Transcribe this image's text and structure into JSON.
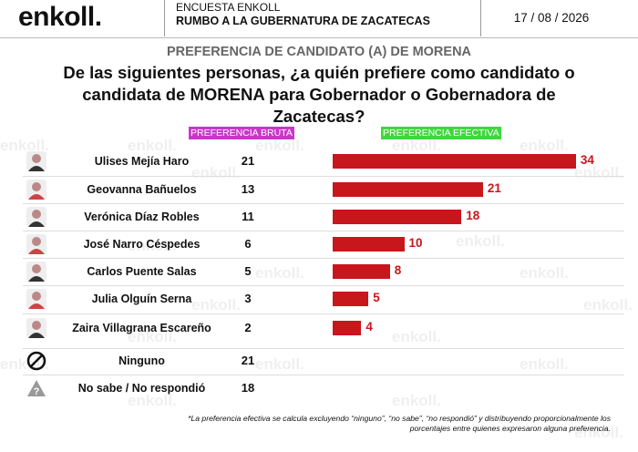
{
  "header": {
    "logo": "enkoll.",
    "survey": "ENCUESTA ENKOLL",
    "subtitle": "RUMBO A LA GUBERNATURA DE ZACATECAS",
    "date": "17 / 08 / 2026"
  },
  "chart_data": {
    "type": "bar",
    "section_title": "PREFERENCIA DE CANDIDATO (A) DE MORENA",
    "title": "De las siguientes personas, ¿a quién prefiere como candidato o candidata de MORENA para Gobernador o Gobernadora de Zacatecas?",
    "categories": [
      "Ulises Mejía Haro",
      "Geovanna Bañuelos",
      "Verónica Díaz Robles",
      "José Narro Céspedes",
      "Carlos Puente Salas",
      "Julia Olguín Serna",
      "Zaira Villagrana Escareño",
      "Ninguno",
      "No sabe / No respondió"
    ],
    "series": [
      {
        "name": "PREFERENCIA BRUTA",
        "color": "#c936c9",
        "values": [
          21,
          13,
          11,
          6,
          5,
          3,
          2,
          21,
          18
        ]
      },
      {
        "name": "PREFERENCIA EFECTIVA",
        "color": "#c8161d",
        "values": [
          34,
          21,
          18,
          10,
          8,
          5,
          4,
          null,
          null
        ]
      }
    ],
    "footnote": "*La preferencia efectiva se calcula excluyendo “ninguno”, “no sabe”, “no respondió” y distribuyendo proporcionalmente los porcentajes entre quienes expresaron alguna preferencia."
  }
}
